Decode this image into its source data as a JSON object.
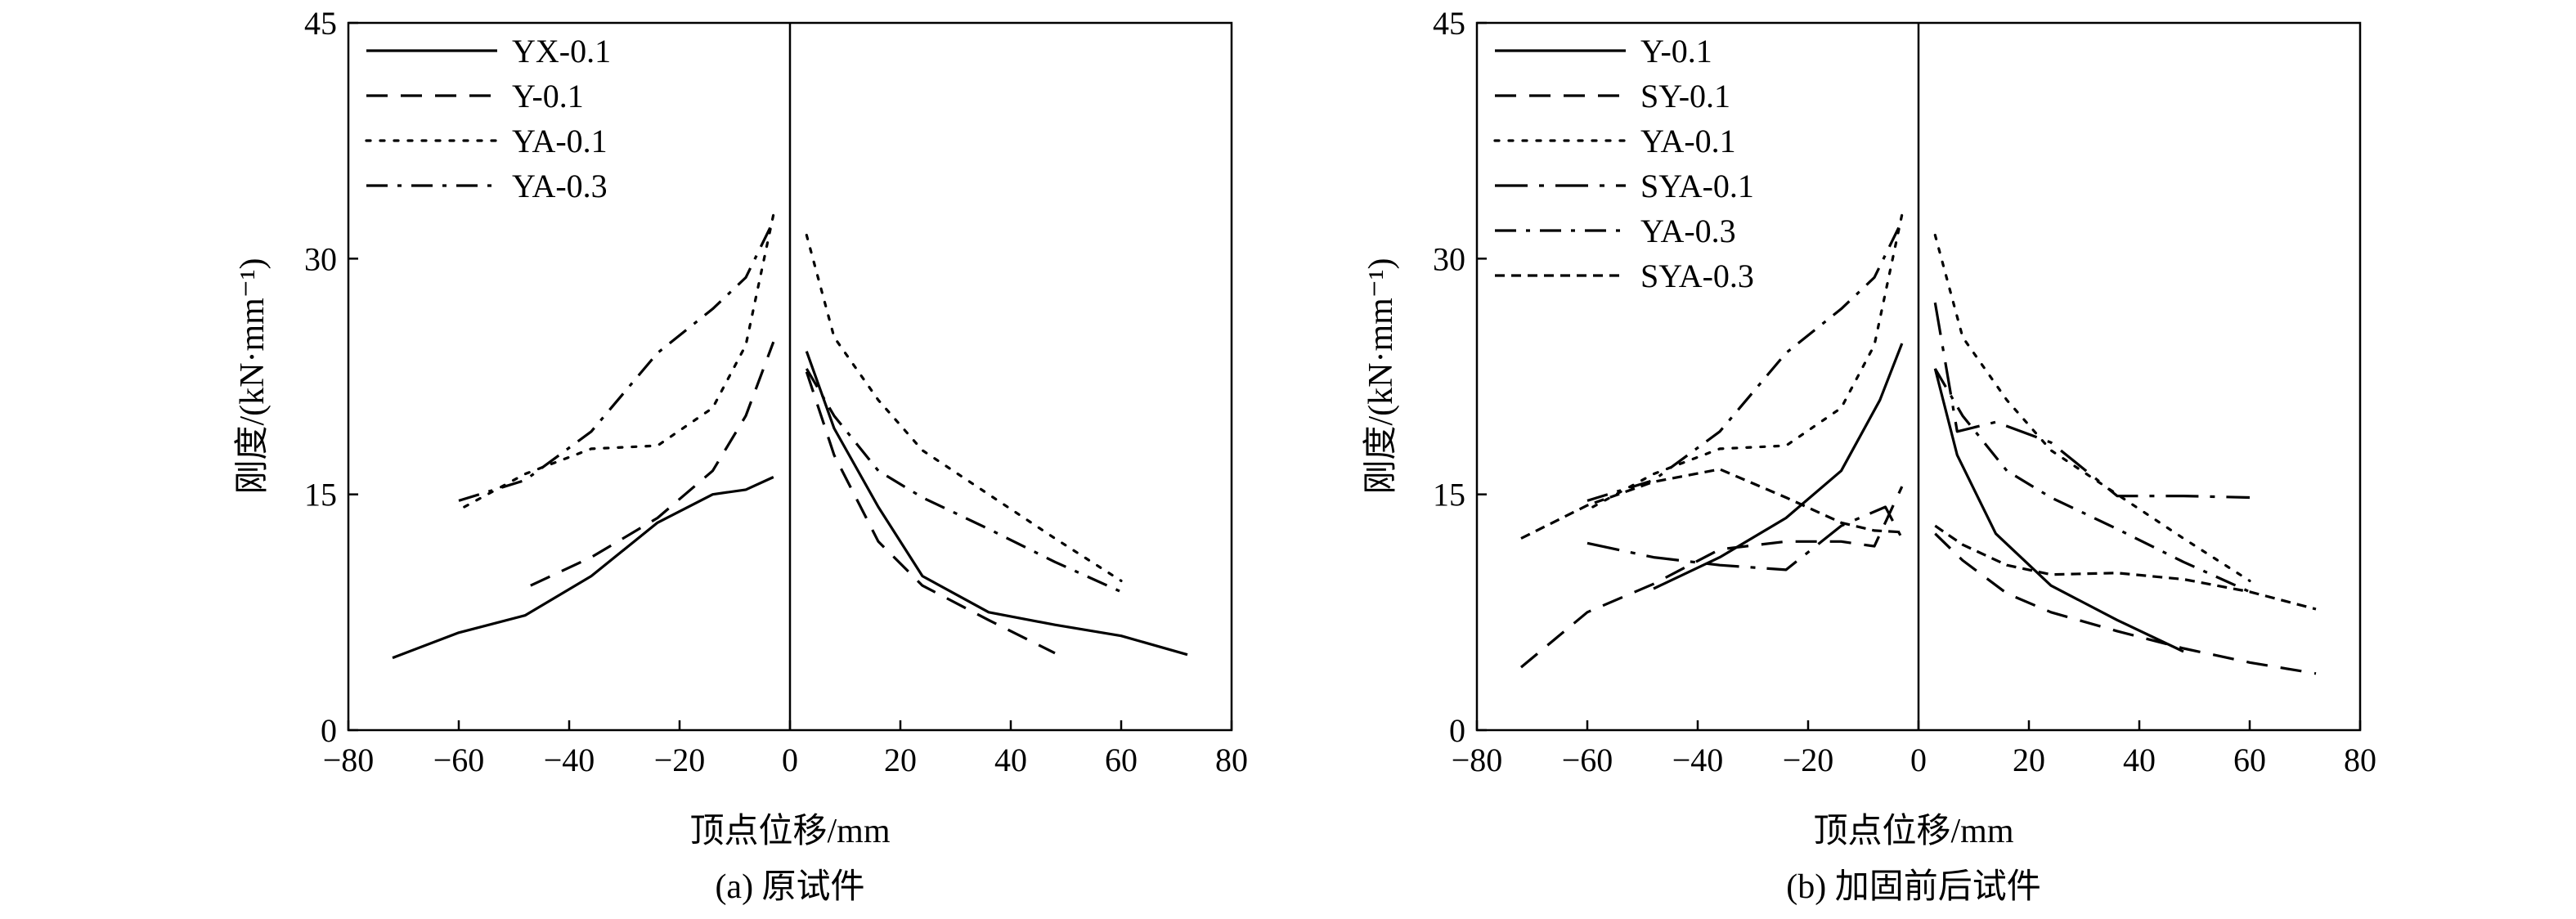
{
  "chart_data": [
    {
      "type": "line",
      "caption": "(a) 原试件",
      "xlabel": "顶点位移/mm",
      "ylabel": "刚度/(kN·mm⁻¹)",
      "xlim": [
        -80,
        80
      ],
      "ylim": [
        0,
        45
      ],
      "xticks": [
        -80,
        -60,
        -40,
        -20,
        0,
        20,
        40,
        60,
        80
      ],
      "xtick_labels": [
        "−80",
        "−60",
        "−40",
        "−20",
        "0",
        "20",
        "40",
        "60",
        "80"
      ],
      "yticks": [
        0,
        15,
        30,
        45
      ],
      "ytick_labels": [
        "0",
        "15",
        "30",
        "45"
      ],
      "grid": false,
      "legend": "top-left",
      "series": [
        {
          "name": "YX-0.1",
          "style": "solid",
          "neg": [
            [
              -72,
              4.6
            ],
            [
              -60,
              6.2
            ],
            [
              -48,
              7.3
            ],
            [
              -36,
              9.8
            ],
            [
              -24,
              13.2
            ],
            [
              -14,
              15.0
            ],
            [
              -8,
              15.3
            ],
            [
              -3,
              16.1
            ]
          ],
          "pos": [
            [
              3,
              24.1
            ],
            [
              8,
              19.2
            ],
            [
              16,
              14.2
            ],
            [
              24,
              9.8
            ],
            [
              36,
              7.5
            ],
            [
              48,
              6.7
            ],
            [
              60,
              6.0
            ],
            [
              72,
              4.8
            ]
          ]
        },
        {
          "name": "Y-0.1",
          "style": "dashed",
          "neg": [
            [
              -47,
              9.2
            ],
            [
              -36,
              11.0
            ],
            [
              -24,
              13.5
            ],
            [
              -14,
              16.5
            ],
            [
              -8,
              20.0
            ],
            [
              -3,
              24.7
            ]
          ],
          "pos": [
            [
              3,
              22.8
            ],
            [
              8,
              17.5
            ],
            [
              16,
              12.0
            ],
            [
              24,
              9.2
            ],
            [
              36,
              7.0
            ],
            [
              48,
              4.9
            ]
          ]
        },
        {
          "name": "YA-0.1",
          "style": "dotted",
          "neg": [
            [
              -59,
              14.2
            ],
            [
              -48,
              16.3
            ],
            [
              -36,
              17.9
            ],
            [
              -24,
              18.1
            ],
            [
              -14,
              20.5
            ],
            [
              -8,
              24.5
            ],
            [
              -3,
              32.8
            ]
          ],
          "pos": [
            [
              3,
              31.5
            ],
            [
              8,
              25.0
            ],
            [
              16,
              21.0
            ],
            [
              24,
              17.8
            ],
            [
              36,
              15.0
            ],
            [
              48,
              12.2
            ],
            [
              60,
              9.5
            ]
          ]
        },
        {
          "name": "YA-0.3",
          "style": "dashdot",
          "neg": [
            [
              -60,
              14.6
            ],
            [
              -48,
              15.9
            ],
            [
              -36,
              19.0
            ],
            [
              -24,
              24.0
            ],
            [
              -14,
              26.8
            ],
            [
              -8,
              28.8
            ],
            [
              -3,
              32.4
            ]
          ],
          "pos": [
            [
              3,
              23.0
            ],
            [
              8,
              20.0
            ],
            [
              16,
              16.5
            ],
            [
              24,
              14.8
            ],
            [
              36,
              12.8
            ],
            [
              48,
              10.7
            ],
            [
              60,
              8.8
            ]
          ]
        }
      ]
    },
    {
      "type": "line",
      "caption": "(b) 加固前后试件",
      "xlabel": "顶点位移/mm",
      "ylabel": "刚度/(kN·mm⁻¹)",
      "xlim": [
        -80,
        80
      ],
      "ylim": [
        0,
        45
      ],
      "xticks": [
        -80,
        -60,
        -40,
        -20,
        0,
        20,
        40,
        60,
        80
      ],
      "xtick_labels": [
        "−80",
        "−60",
        "−40",
        "−20",
        "0",
        "20",
        "40",
        "60",
        "80"
      ],
      "yticks": [
        0,
        15,
        30,
        45
      ],
      "ytick_labels": [
        "0",
        "15",
        "30",
        "45"
      ],
      "grid": false,
      "legend": "top-left",
      "series": [
        {
          "name": "Y-0.1",
          "style": "solid",
          "neg": [
            [
              -48,
              9.0
            ],
            [
              -36,
              11.0
            ],
            [
              -24,
              13.5
            ],
            [
              -14,
              16.5
            ],
            [
              -7,
              21.0
            ],
            [
              -3,
              24.6
            ]
          ],
          "pos": [
            [
              3,
              23.0
            ],
            [
              7,
              17.5
            ],
            [
              14,
              12.5
            ],
            [
              24,
              9.2
            ],
            [
              36,
              7.0
            ],
            [
              48,
              5.0
            ]
          ]
        },
        {
          "name": "SY-0.1",
          "style": "dashed",
          "neg": [
            [
              -72,
              4.0
            ],
            [
              -60,
              7.5
            ],
            [
              -48,
              9.3
            ],
            [
              -36,
              11.5
            ],
            [
              -24,
              12.0
            ],
            [
              -14,
              12.0
            ],
            [
              -8,
              11.7
            ],
            [
              -3,
              15.5
            ]
          ],
          "pos": [
            [
              3,
              12.5
            ],
            [
              8,
              10.8
            ],
            [
              16,
              8.7
            ],
            [
              24,
              7.5
            ],
            [
              36,
              6.3
            ],
            [
              48,
              5.2
            ],
            [
              60,
              4.3
            ],
            [
              72,
              3.6
            ]
          ]
        },
        {
          "name": "YA-0.1",
          "style": "dotted",
          "neg": [
            [
              -59,
              14.2
            ],
            [
              -48,
              16.3
            ],
            [
              -36,
              17.9
            ],
            [
              -24,
              18.1
            ],
            [
              -14,
              20.5
            ],
            [
              -8,
              24.5
            ],
            [
              -3,
              32.8
            ]
          ],
          "pos": [
            [
              3,
              31.5
            ],
            [
              8,
              25.0
            ],
            [
              16,
              21.0
            ],
            [
              24,
              17.8
            ],
            [
              36,
              15.0
            ],
            [
              48,
              12.2
            ],
            [
              60,
              9.5
            ]
          ]
        },
        {
          "name": "SYA-0.1",
          "style": "longdashdot",
          "neg": [
            [
              -60,
              11.9
            ],
            [
              -48,
              11.0
            ],
            [
              -36,
              10.5
            ],
            [
              -24,
              10.2
            ],
            [
              -14,
              13.0
            ],
            [
              -6,
              14.2
            ],
            [
              -3,
              12.2
            ]
          ],
          "pos": [
            [
              3,
              27.2
            ],
            [
              7,
              19.0
            ],
            [
              14,
              19.6
            ],
            [
              24,
              18.3
            ],
            [
              36,
              14.9
            ],
            [
              48,
              14.9
            ],
            [
              60,
              14.8
            ]
          ]
        },
        {
          "name": "YA-0.3",
          "style": "dashdot",
          "neg": [
            [
              -60,
              14.6
            ],
            [
              -48,
              15.9
            ],
            [
              -36,
              19.0
            ],
            [
              -24,
              24.0
            ],
            [
              -14,
              26.8
            ],
            [
              -8,
              28.8
            ],
            [
              -3,
              32.4
            ]
          ],
          "pos": [
            [
              3,
              23.0
            ],
            [
              8,
              20.0
            ],
            [
              16,
              16.5
            ],
            [
              24,
              14.8
            ],
            [
              36,
              12.8
            ],
            [
              48,
              10.7
            ],
            [
              60,
              8.8
            ]
          ]
        },
        {
          "name": "SYA-0.3",
          "style": "shortdash",
          "neg": [
            [
              -72,
              12.2
            ],
            [
              -60,
              14.3
            ],
            [
              -48,
              15.8
            ],
            [
              -36,
              16.6
            ],
            [
              -24,
              14.8
            ],
            [
              -14,
              13.2
            ],
            [
              -8,
              12.7
            ],
            [
              -3,
              12.6
            ]
          ],
          "pos": [
            [
              3,
              13.0
            ],
            [
              8,
              11.8
            ],
            [
              16,
              10.5
            ],
            [
              24,
              9.9
            ],
            [
              36,
              10.0
            ],
            [
              48,
              9.6
            ],
            [
              60,
              8.8
            ],
            [
              72,
              7.7
            ]
          ]
        }
      ]
    }
  ]
}
